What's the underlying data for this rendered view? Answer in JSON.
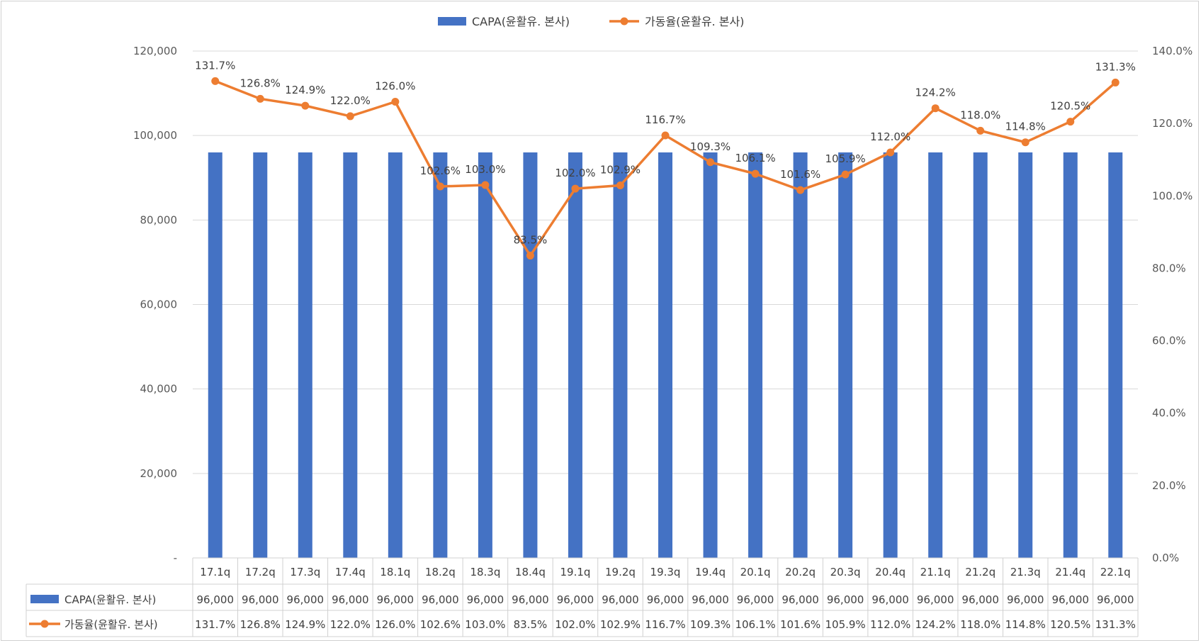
{
  "chart_data": {
    "type": "bar",
    "categories": [
      "17.1q",
      "17.2q",
      "17.3q",
      "17.4q",
      "18.1q",
      "18.2q",
      "18.3q",
      "18.4q",
      "19.1q",
      "19.2q",
      "19.3q",
      "19.4q",
      "20.1q",
      "20.2q",
      "20.3q",
      "20.4q",
      "21.1q",
      "21.2q",
      "21.3q",
      "21.4q",
      "22.1q"
    ],
    "series": [
      {
        "name": "CAPA(윤활유. 본사)",
        "type": "bar",
        "axis": "left",
        "color": "#4472C4",
        "values": [
          96000,
          96000,
          96000,
          96000,
          96000,
          96000,
          96000,
          96000,
          96000,
          96000,
          96000,
          96000,
          96000,
          96000,
          96000,
          96000,
          96000,
          96000,
          96000,
          96000,
          96000
        ],
        "table_labels": [
          "96,000",
          "96,000",
          "96,000",
          "96,000",
          "96,000",
          "96,000",
          "96,000",
          "96,000",
          "96,000",
          "96,000",
          "96,000",
          "96,000",
          "96,000",
          "96,000",
          "96,000",
          "96,000",
          "96,000",
          "96,000",
          "96,000",
          "96,000",
          "96,000"
        ]
      },
      {
        "name": "가동율(윤활유. 본사)",
        "type": "line",
        "axis": "right",
        "color": "#ED7D31",
        "values": [
          131.7,
          126.8,
          124.9,
          122.0,
          126.0,
          102.6,
          103.0,
          83.5,
          102.0,
          102.9,
          116.7,
          109.3,
          106.1,
          101.6,
          105.9,
          112.0,
          124.2,
          118.0,
          114.8,
          120.5,
          131.3
        ],
        "labels": [
          "131.7%",
          "126.8%",
          "124.9%",
          "122.0%",
          "126.0%",
          "102.6%",
          "103.0%",
          "83.5%",
          "102.0%",
          "102.9%",
          "116.7%",
          "109.3%",
          "106.1%",
          "101.6%",
          "105.9%",
          "112.0%",
          "124.2%",
          "118.0%",
          "114.8%",
          "120.5%",
          "131.3%"
        ]
      }
    ],
    "y_left": {
      "range": [
        0,
        120000
      ],
      "tick_values": [
        0,
        20000,
        40000,
        60000,
        80000,
        100000,
        120000
      ],
      "tick_labels": [
        "-",
        "20,000",
        "40,000",
        "60,000",
        "80,000",
        "100,000",
        "120,000"
      ]
    },
    "y_right": {
      "range": [
        0,
        140
      ],
      "tick_values": [
        0,
        20,
        40,
        60,
        80,
        100,
        120,
        140
      ],
      "tick_labels": [
        "0.0%",
        "20.0%",
        "40.0%",
        "60.0%",
        "80.0%",
        "100.0%",
        "120.0%",
        "140.0%"
      ]
    },
    "grid": true,
    "legend_position": "top-center",
    "data_table": true
  }
}
